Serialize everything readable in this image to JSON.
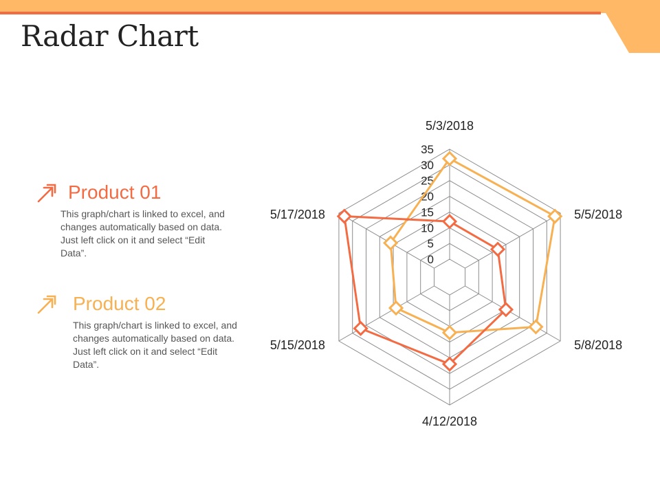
{
  "slide": {
    "title": "Radar Chart"
  },
  "legend": [
    {
      "name": "Product 01",
      "color": "#f26b43",
      "icon": "double-arrow-up-right-icon",
      "description": "This graph/chart is linked to excel, and changes automatically based on data. Just left click on it and select “Edit Data”."
    },
    {
      "name": "Product 02",
      "color": "#f7b052",
      "icon": "double-arrow-up-right-icon",
      "description": "This graph/chart is linked to excel, and changes automatically based on data. Just left click on it and select “Edit Data”."
    }
  ],
  "colors": {
    "accent_orange": "#ffb865",
    "accent_red": "#f26b43",
    "grid": "#8c8c8c"
  },
  "chart_data": {
    "type": "radar",
    "categories": [
      "5/3/2018",
      "5/5/2018",
      "5/8/2018",
      "4/12/2018",
      "5/15/2018",
      "5/17/2018"
    ],
    "ticks": [
      "0",
      "5",
      "10",
      "15",
      "20",
      "25",
      "30",
      "35"
    ],
    "rlim": [
      0,
      35
    ],
    "grid": true,
    "series": [
      {
        "name": "Product 01",
        "color": "#f26b43",
        "values": [
          12,
          12,
          15,
          22,
          27,
          33
        ]
      },
      {
        "name": "Product 02",
        "color": "#f7b052",
        "values": [
          32,
          33,
          26,
          12,
          14,
          16
        ]
      }
    ]
  }
}
